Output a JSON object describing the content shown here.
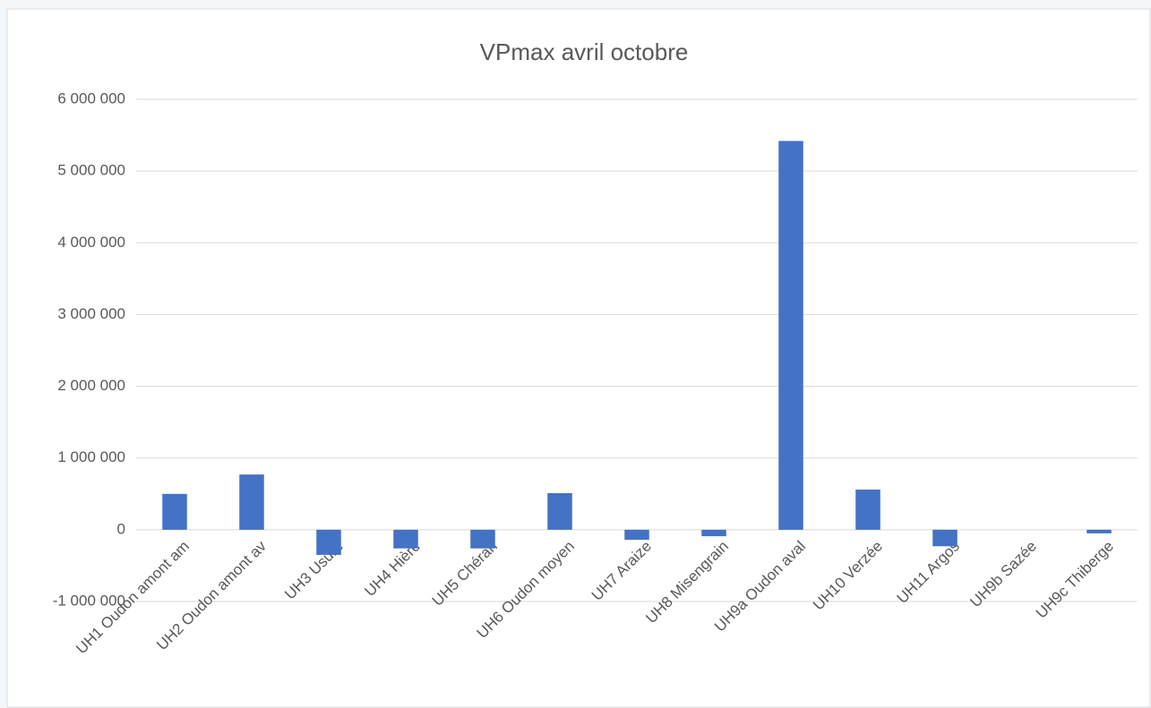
{
  "chart_data": {
    "type": "bar",
    "title": "VPmax avril octobre",
    "categories": [
      "UH1 Oudon amont am",
      "UH2 Oudon amont av",
      "UH3 Usure",
      "UH4 Hière",
      "UH5 Chéran",
      "UH6 Oudon moyen",
      "UH7 Araize",
      "UH8 Misengrain",
      "UH9a Oudon aval",
      "UH10 Verzée",
      "UH11 Argos",
      "UH9b Sazée",
      "UH9c Thiberge"
    ],
    "values": [
      500000,
      770000,
      -350000,
      -260000,
      -260000,
      510000,
      -140000,
      -90000,
      5420000,
      560000,
      -230000,
      0,
      -50000
    ],
    "color": "#4472c4",
    "ylim": [
      -1000000,
      6000000
    ],
    "yticks": [
      {
        "value": -1000000,
        "label": "-1 000 000"
      },
      0,
      {
        "value": 1000000,
        "label": "1 000 000"
      },
      {
        "value": 2000000,
        "label": "2 000 000"
      },
      {
        "value": 3000000,
        "label": "3 000 000"
      },
      {
        "value": 4000000,
        "label": "4 000 000"
      },
      {
        "value": 5000000,
        "label": "5 000 000"
      },
      {
        "value": 6000000,
        "label": "6 000 000"
      }
    ],
    "grid": true
  }
}
